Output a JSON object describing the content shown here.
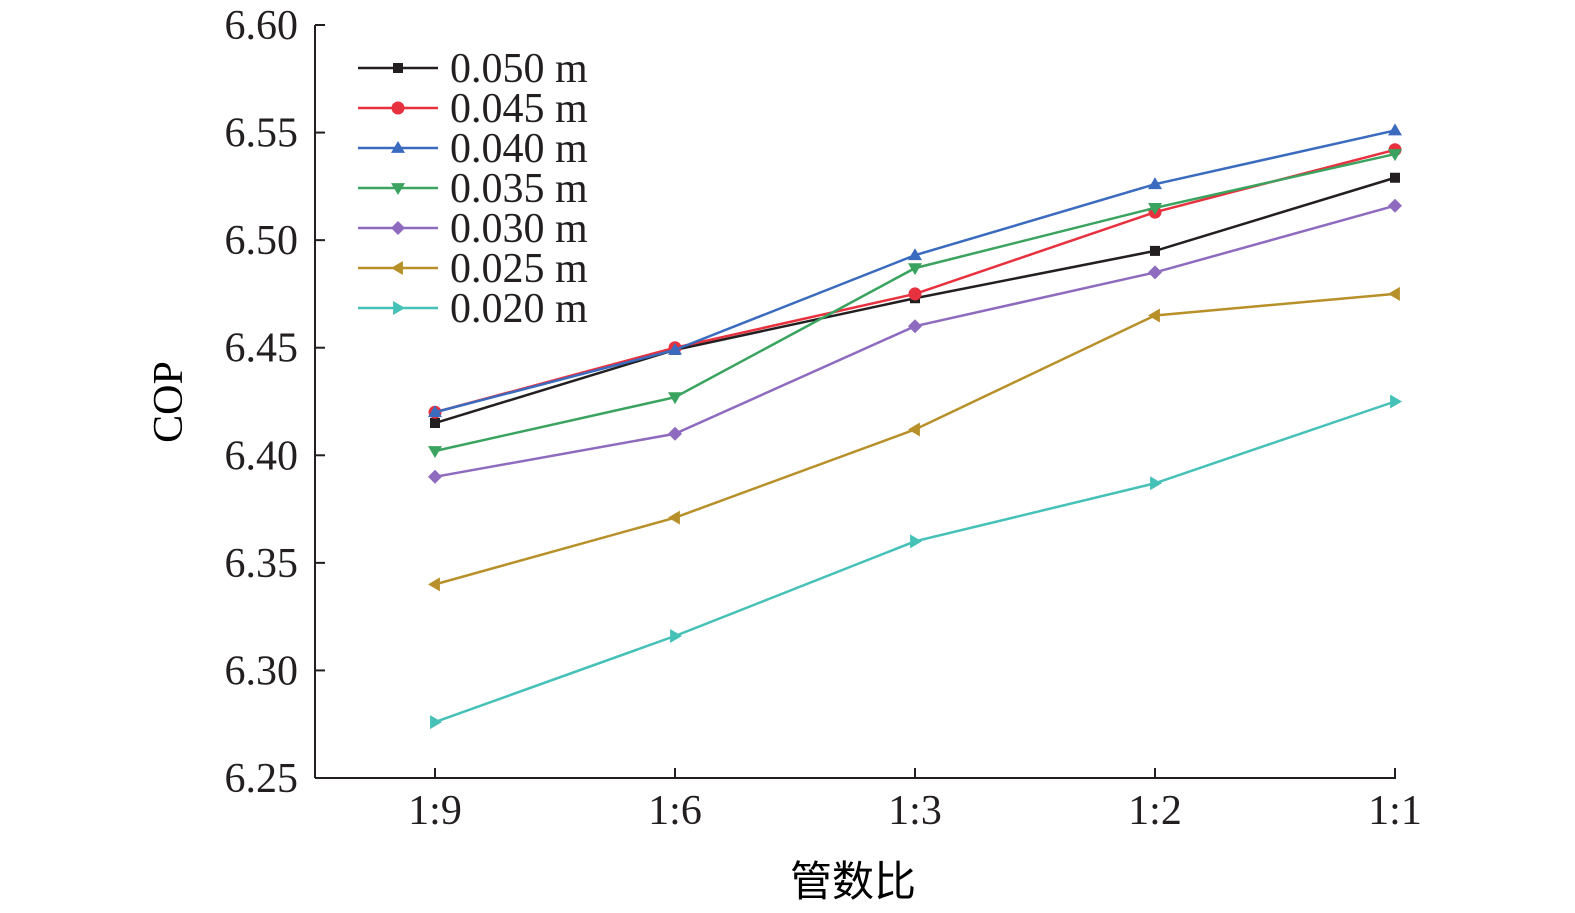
{
  "chart_data": {
    "type": "line",
    "title": "",
    "xlabel": "管数比",
    "ylabel": "COP",
    "categories": [
      "1:9",
      "1:6",
      "1:3",
      "1:2",
      "1:1"
    ],
    "ylim": [
      6.25,
      6.6
    ],
    "yticks": [
      "6.25",
      "6.30",
      "6.35",
      "6.40",
      "6.45",
      "6.50",
      "6.55",
      "6.60"
    ],
    "grid": false,
    "legend_placement": "top-left",
    "series": [
      {
        "name": "0.050 m",
        "color": "#231f20",
        "marker": "square",
        "values": [
          6.415,
          6.449,
          6.473,
          6.495,
          6.529
        ]
      },
      {
        "name": "0.045 m",
        "color": "#e8313f",
        "marker": "circle",
        "values": [
          6.42,
          6.45,
          6.475,
          6.513,
          6.542
        ]
      },
      {
        "name": "0.040 m",
        "color": "#3b6bbf",
        "marker": "triangle-up",
        "values": [
          6.42,
          6.449,
          6.493,
          6.526,
          6.551
        ]
      },
      {
        "name": "0.035 m",
        "color": "#3aa35f",
        "marker": "triangle-down",
        "values": [
          6.402,
          6.427,
          6.487,
          6.515,
          6.54
        ]
      },
      {
        "name": "0.030 m",
        "color": "#8e6bbf",
        "marker": "diamond",
        "values": [
          6.39,
          6.41,
          6.46,
          6.485,
          6.516
        ]
      },
      {
        "name": "0.025 m",
        "color": "#b8902a",
        "marker": "triangle-left",
        "values": [
          6.34,
          6.371,
          6.412,
          6.465,
          6.475
        ]
      },
      {
        "name": "0.020 m",
        "color": "#45c1b8",
        "marker": "triangle-right",
        "values": [
          6.276,
          6.316,
          6.36,
          6.387,
          6.425
        ]
      }
    ]
  }
}
